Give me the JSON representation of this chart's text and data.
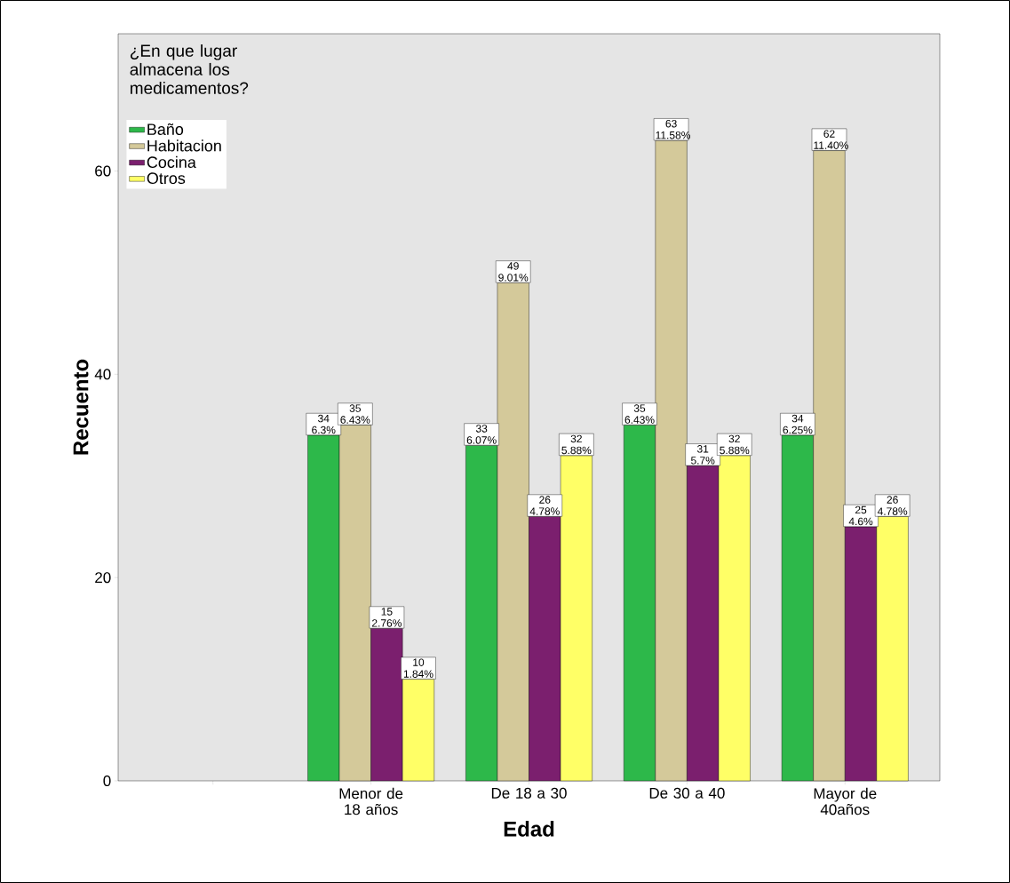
{
  "chart_data": {
    "type": "bar",
    "xlabel": "Edad",
    "ylabel": "Recuento",
    "legend_title": "¿En que lugar almacena los medicamentos?",
    "categories": [
      null,
      "Menor de 18 años",
      "De 18 a 30",
      "De 30 a 40",
      "Mayor de 40años"
    ],
    "series": [
      {
        "name": "Baño",
        "color": "#2db84a",
        "values": [
          null,
          34,
          33,
          35,
          34
        ],
        "value_labels": [
          null,
          "34 6.3%",
          "33 6.07%",
          "35 6.43%",
          "34 6.25%"
        ]
      },
      {
        "name": "Habitacion",
        "color": "#d4c99a",
        "values": [
          null,
          35,
          49,
          63,
          62
        ],
        "value_labels": [
          null,
          "35 6.43%",
          "49 9.01%",
          "63 11.58%",
          "62 11.40%"
        ]
      },
      {
        "name": "Cocina",
        "color": "#7b1f6e",
        "values": [
          null,
          15,
          26,
          31,
          25
        ],
        "value_labels": [
          null,
          "15 2.76%",
          "26 4.78%",
          "31 5.7%",
          "25 4.6%"
        ]
      },
      {
        "name": "Otros",
        "color": "#ffff66",
        "values": [
          null,
          10,
          32,
          32,
          26
        ],
        "value_labels": [
          null,
          "10 1.84%",
          "32 5.88%",
          "32 5.88%",
          "26 4.78%"
        ]
      }
    ],
    "ylim": [
      0,
      73.5
    ],
    "yticks": [
      0,
      20,
      40,
      60
    ],
    "grid": false,
    "legend": "top left"
  }
}
